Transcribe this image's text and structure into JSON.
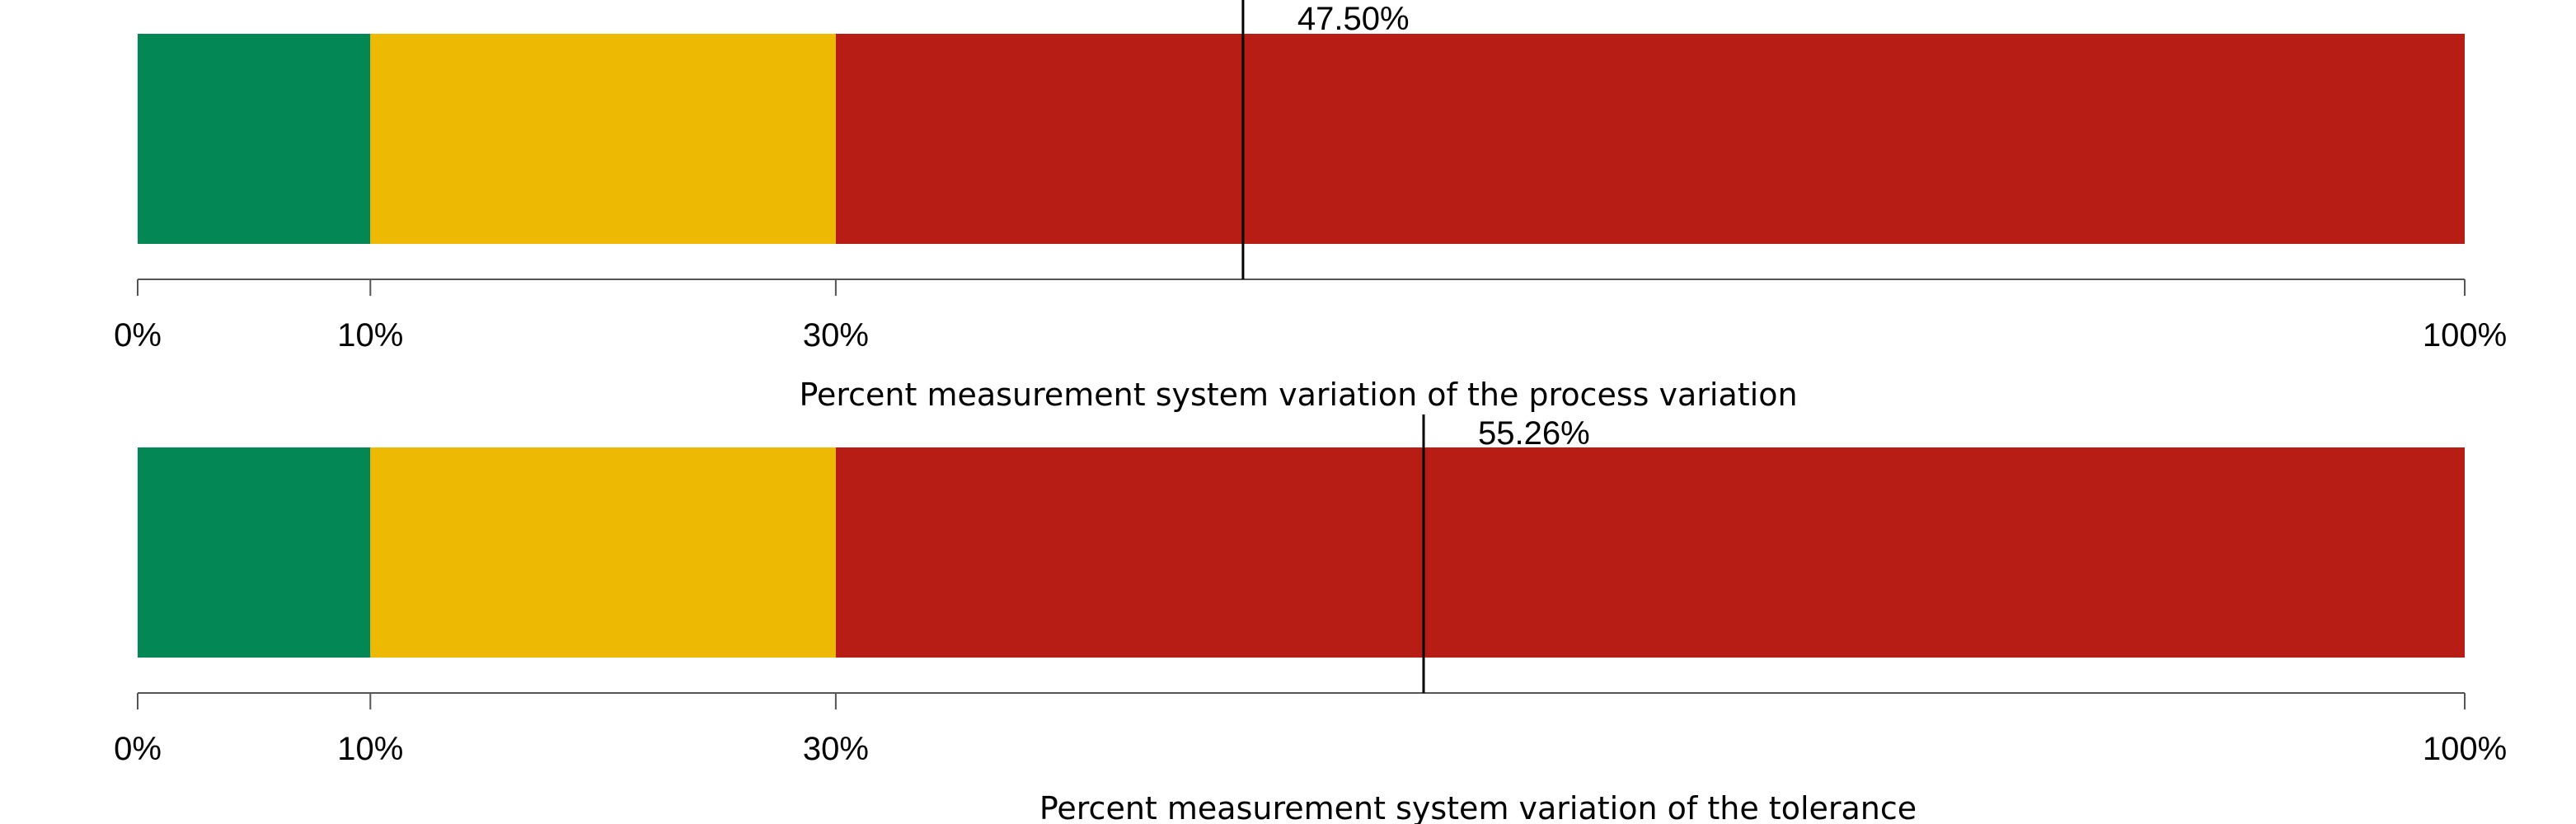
{
  "colors": {
    "green": "#038754",
    "yellow": "#EEB902",
    "red": "#B81D15"
  },
  "chart_data": [
    {
      "type": "bar",
      "xlabel": "Percent measurement system variation of the process variation",
      "xlim": [
        0,
        100
      ],
      "bands": [
        {
          "from": 0,
          "to": 10,
          "color": "#038754"
        },
        {
          "from": 10,
          "to": 30,
          "color": "#EEB902"
        },
        {
          "from": 30,
          "to": 100,
          "color": "#B81D15"
        }
      ],
      "ticks": [
        0,
        10,
        30,
        100
      ],
      "tick_labels": [
        "0%",
        "10%",
        "30%",
        "100%"
      ],
      "marker_value": 47.5,
      "marker_label": "47.50%"
    },
    {
      "type": "bar",
      "xlabel": "Percent measurement system variation of the tolerance",
      "xlim": [
        0,
        100
      ],
      "bands": [
        {
          "from": 0,
          "to": 10,
          "color": "#038754"
        },
        {
          "from": 10,
          "to": 30,
          "color": "#EEB902"
        },
        {
          "from": 30,
          "to": 100,
          "color": "#B81D15"
        }
      ],
      "ticks": [
        0,
        10,
        30,
        100
      ],
      "tick_labels": [
        "0%",
        "10%",
        "30%",
        "100%"
      ],
      "marker_value": 55.26,
      "marker_label": "55.26%"
    }
  ]
}
